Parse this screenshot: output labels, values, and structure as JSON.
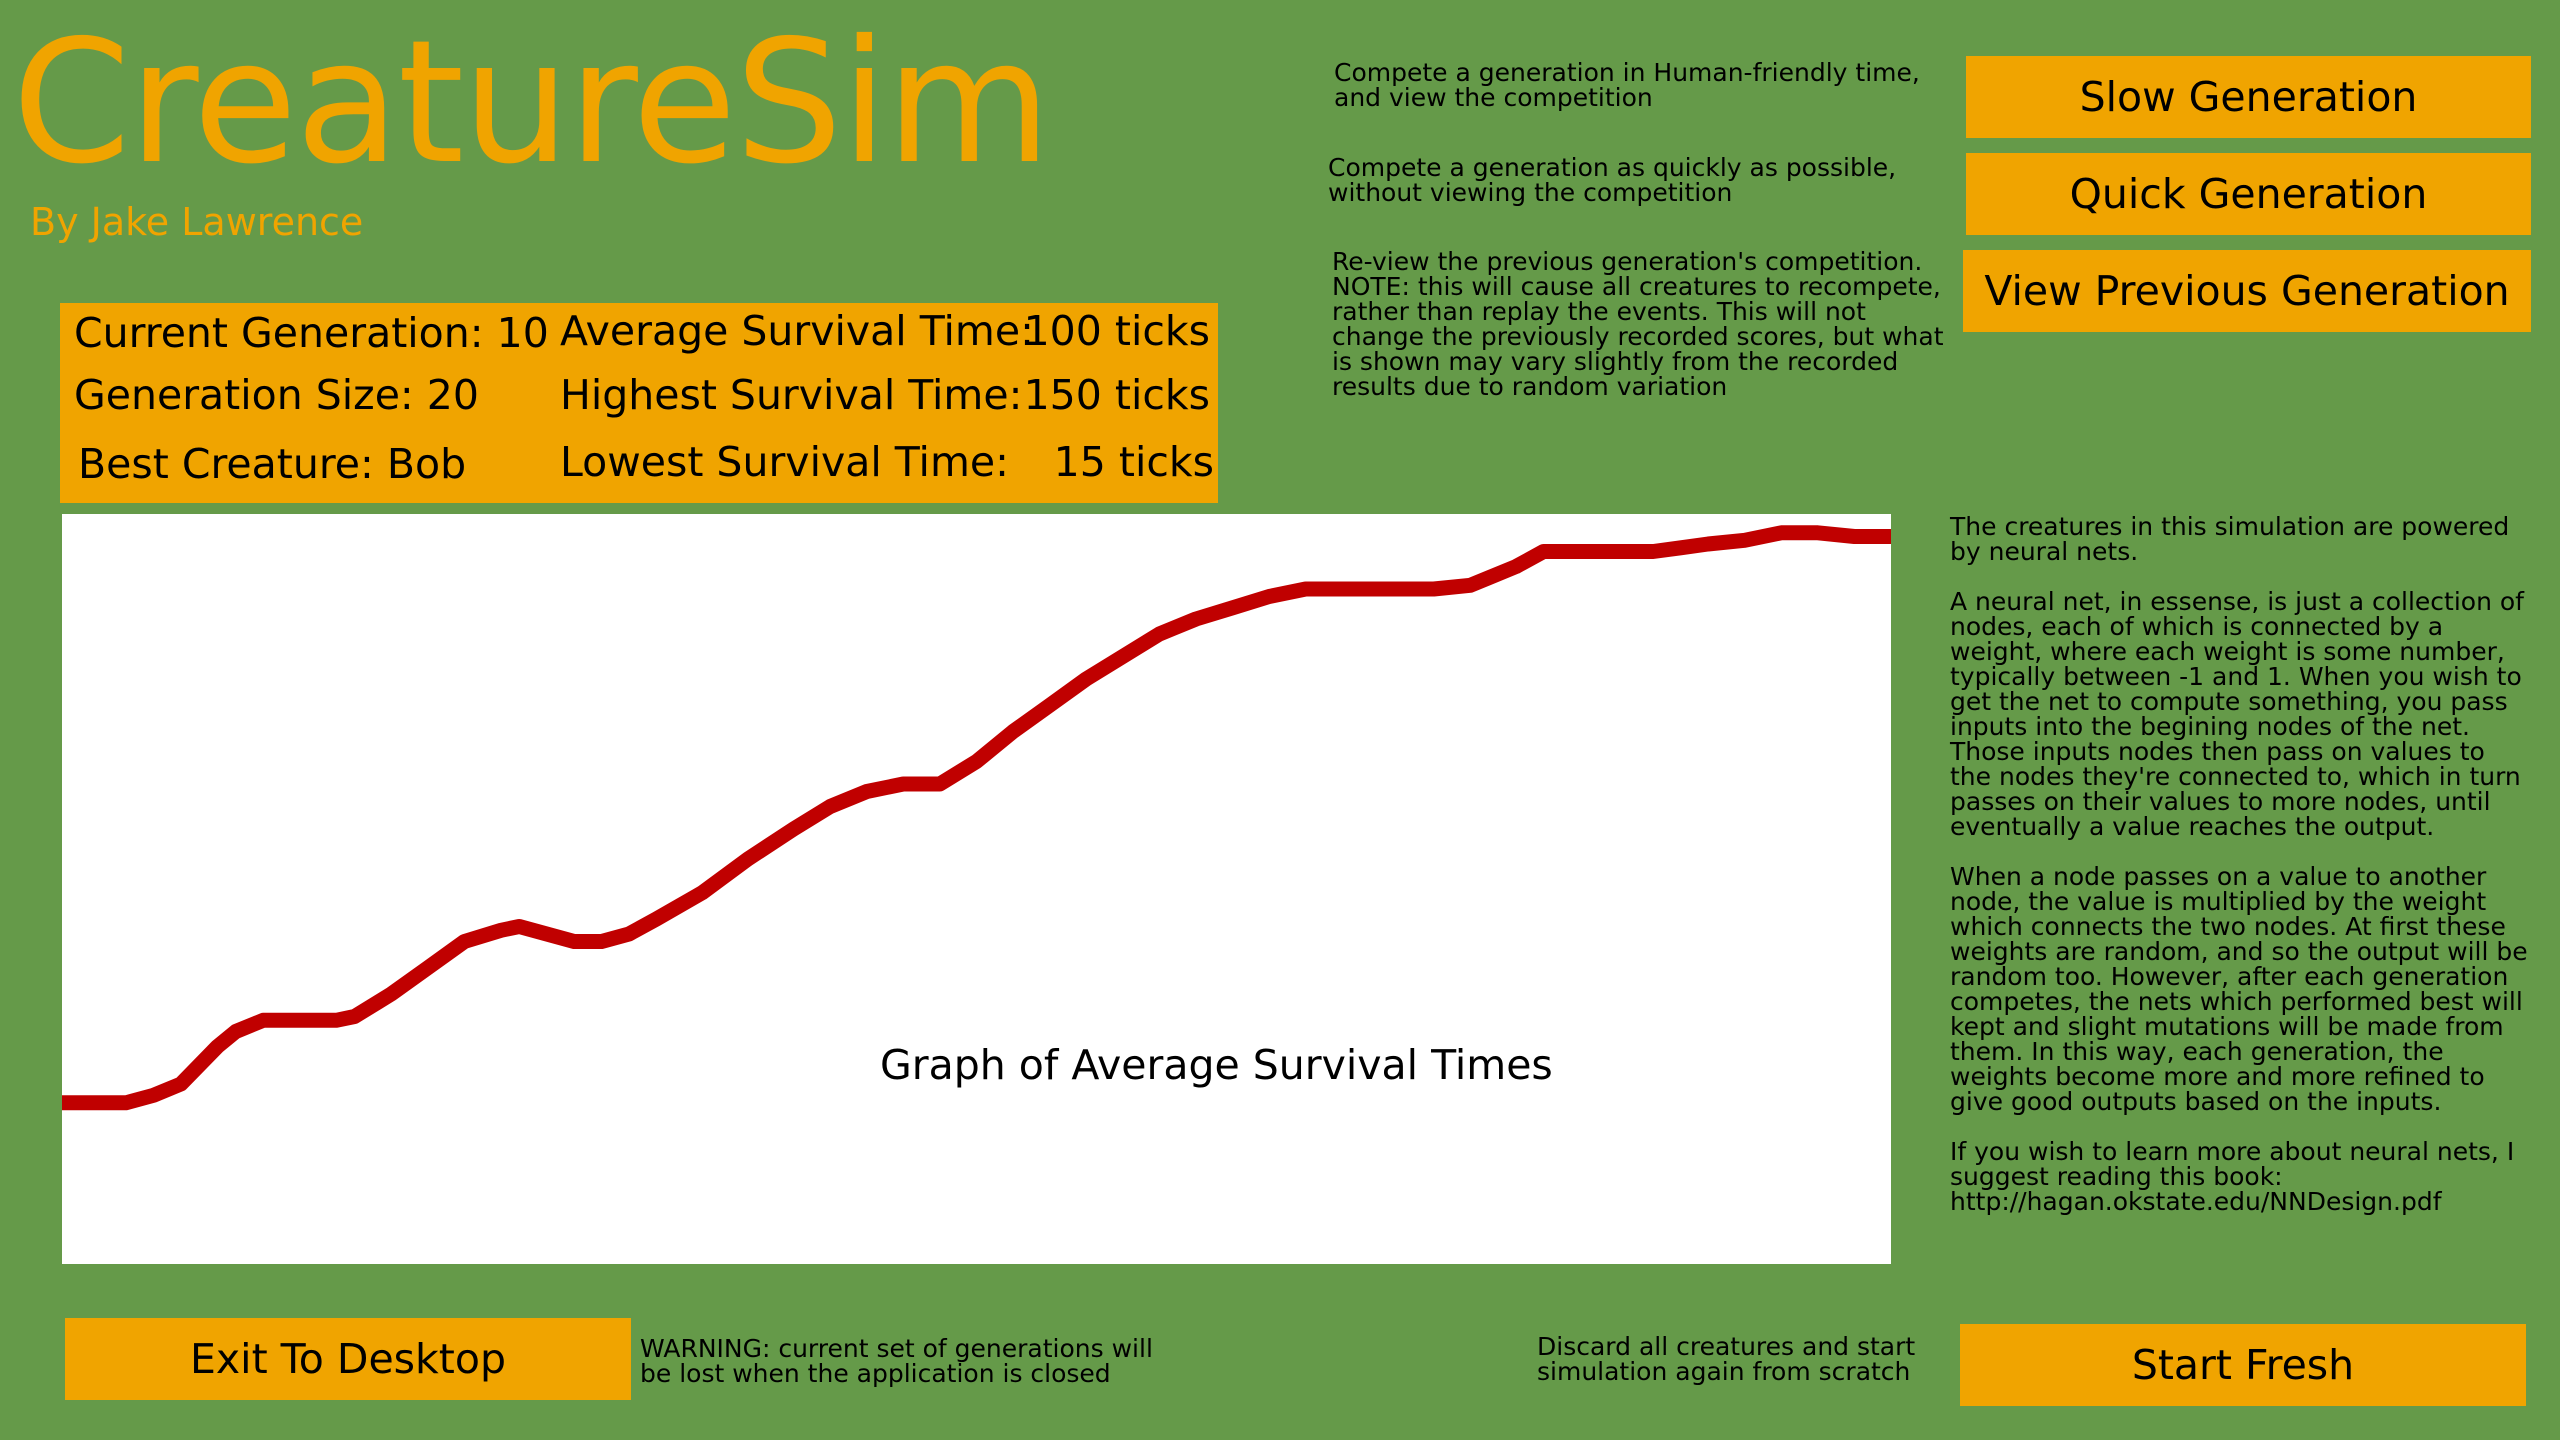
{
  "app": {
    "title": "CreatureSim",
    "byline": "By Jake Lawrence"
  },
  "colors": {
    "background": "#659a49",
    "accent": "#f0a400",
    "line": "#c00000",
    "graph_bg": "#ffffff"
  },
  "controls": {
    "slow": {
      "label": "Slow Generation",
      "desc": "Compete a generation in Human-friendly time,\nand view the competition"
    },
    "quick": {
      "label": "Quick Generation",
      "desc": "Compete a generation as quickly as possible,\nwithout viewing the competition"
    },
    "previous": {
      "label": "View Previous Generation",
      "desc": "Re-view the previous generation's competition.\nNOTE: this will cause all creatures to recompete,\nrather than replay the events. This will not\nchange the previously recorded scores, but what\nis shown may vary slightly from the recorded\nresults due to random variation"
    }
  },
  "stats": {
    "current_generation": {
      "label": "Current Generation:",
      "value": "10"
    },
    "generation_size": {
      "label": "Generation Size:",
      "value": "20"
    },
    "best_creature": {
      "label": "Best Creature:",
      "value": "Bob"
    },
    "average_survival": {
      "label": "Average Survival Time:",
      "value": "100 ticks"
    },
    "highest_survival": {
      "label": "Highest Survival Time:",
      "value": "150 ticks"
    },
    "lowest_survival": {
      "label": "Lowest Survival Time:",
      "value": "15 ticks"
    }
  },
  "graph": {
    "label": "Graph of Average Survival Times"
  },
  "chart_data": {
    "type": "line",
    "title": "Graph of Average Survival Times",
    "xlabel": "",
    "ylabel": "",
    "grid": false,
    "xlim": [
      0,
      100
    ],
    "ylim": [
      0,
      100
    ],
    "series": [
      {
        "x": [
          0,
          3.5,
          5,
          6.5,
          7.5,
          8.5,
          9.5,
          11,
          13,
          15,
          16,
          18,
          20,
          22,
          24,
          25,
          26.5,
          28,
          29.5,
          31,
          32.5,
          35,
          37.5,
          40,
          42,
          44,
          46,
          48,
          50,
          52,
          54,
          56,
          58,
          60,
          62,
          64,
          66,
          68,
          70,
          72,
          73.5,
          75,
          77,
          78,
          79.5,
          81,
          83,
          85,
          87,
          88.5,
          90,
          92,
          94,
          96,
          98,
          100
        ],
        "values": [
          21.5,
          21.5,
          22.5,
          24,
          26.5,
          29,
          31,
          32.5,
          32.5,
          32.5,
          33,
          36,
          39.5,
          43,
          44.5,
          45,
          44,
          43,
          43,
          44,
          46,
          49.5,
          54,
          58,
          61,
          63,
          64,
          64,
          67,
          71,
          74.5,
          78,
          81,
          84,
          86,
          87.5,
          89,
          90,
          90,
          90,
          90,
          90,
          90.5,
          91.5,
          93,
          95,
          95,
          95,
          95,
          95.5,
          96,
          96.5,
          97.5,
          97.5,
          97,
          97
        ]
      }
    ]
  },
  "info": {
    "paragraphs": [
      "The creatures in this simulation are powered by neural nets.",
      "A neural net, in essense,  is just a collection of nodes, each of which is connected by a weight, where each weight is some number, typically between -1 and 1. When you wish to get the net to compute something, you pass inputs into the begining nodes of the net. Those inputs nodes then pass on values to the nodes they're connected to, which in turn passes on their values to more nodes, until eventually a value reaches the output.",
      "When a node passes on a value to another node, the value is multiplied by the weight which connects the two nodes. At first these weights are random, and so the output will be random too. However, after each generation competes, the nets which performed best will kept and slight mutations will be made from them. In this way, each generation, the weights become more and more refined to give good outputs based on the inputs.",
      "If you wish to learn more about neural nets, I suggest reading this book: http://hagan.okstate.edu/NNDesign.pdf"
    ]
  },
  "footer": {
    "exit": {
      "label": "Exit To Desktop",
      "warning": "WARNING: current set of generations will\nbe lost when the application is closed"
    },
    "fresh": {
      "label": "Start Fresh",
      "desc": "Discard all creatures and start\nsimulation again from scratch"
    }
  }
}
